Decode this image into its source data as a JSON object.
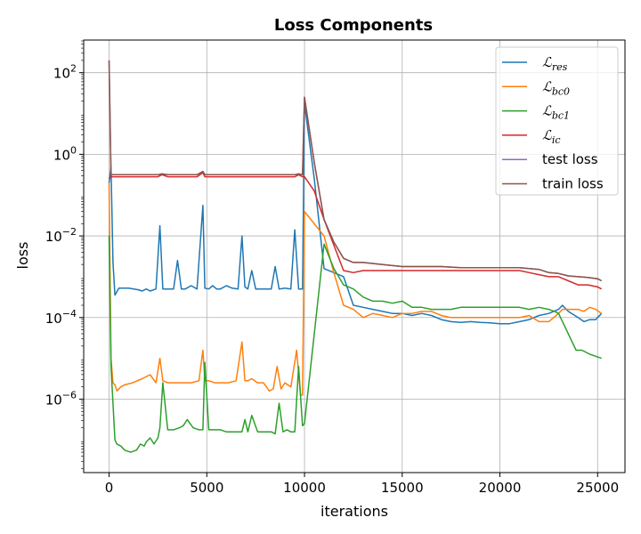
{
  "chart_data": {
    "type": "line",
    "title": "Loss Components",
    "xlabel": "iterations",
    "ylabel": "loss",
    "xlim": [
      -1300,
      26400
    ],
    "ylim_log10": [
      -7.8,
      2.8
    ],
    "yscale": "log",
    "grid": true,
    "legend_position": "top-right",
    "xticks": [
      {
        "value": 0,
        "label": "0"
      },
      {
        "value": 5000,
        "label": "5000"
      },
      {
        "value": 10000,
        "label": "10000"
      },
      {
        "value": 15000,
        "label": "15000"
      },
      {
        "value": 20000,
        "label": "20000"
      },
      {
        "value": 25000,
        "label": "25000"
      }
    ],
    "yticks": [
      {
        "exp": 2,
        "base": "10",
        "sup": "2"
      },
      {
        "exp": 0,
        "base": "10",
        "sup": "0"
      },
      {
        "exp": -2,
        "base": "10",
        "sup": "−2"
      },
      {
        "exp": -4,
        "base": "10",
        "sup": "−4"
      },
      {
        "exp": -6,
        "base": "10",
        "sup": "−6"
      }
    ],
    "series": [
      {
        "name": "res",
        "legend_sym": "ℒ",
        "legend_sub": "res",
        "color": "#1f77b4",
        "x": [
          0,
          100,
          200,
          300,
          500,
          1000,
          1500,
          1700,
          1900,
          2100,
          2400,
          2600,
          2750,
          3000,
          3300,
          3500,
          3700,
          3900,
          4200,
          4500,
          4800,
          4900,
          5100,
          5300,
          5500,
          5700,
          6000,
          6300,
          6600,
          6800,
          6950,
          7100,
          7300,
          7500,
          8000,
          8300,
          8500,
          8700,
          9000,
          9300,
          9500,
          9700,
          9900,
          10000,
          10500,
          11000,
          11500,
          12000,
          12500,
          13000,
          13500,
          14000,
          14500,
          15000,
          15500,
          16000,
          16500,
          17000,
          17500,
          18000,
          18500,
          19000,
          19500,
          20000,
          20500,
          21000,
          21500,
          22000,
          22500,
          23000,
          23200,
          23500,
          24000,
          24300,
          24600,
          24900,
          25200
        ],
        "y": [
          -0.7,
          -0.3,
          -2.65,
          -3.45,
          -3.28,
          -3.28,
          -3.32,
          -3.35,
          -3.3,
          -3.35,
          -3.3,
          -1.75,
          -3.3,
          -3.3,
          -3.3,
          -2.6,
          -3.3,
          -3.3,
          -3.22,
          -3.3,
          -1.25,
          -3.28,
          -3.3,
          -3.22,
          -3.3,
          -3.3,
          -3.22,
          -3.28,
          -3.3,
          -2.0,
          -3.25,
          -3.3,
          -2.85,
          -3.3,
          -3.3,
          -3.3,
          -2.75,
          -3.3,
          -3.28,
          -3.3,
          -1.85,
          -3.3,
          -3.3,
          1.25,
          -0.6,
          -2.8,
          -2.9,
          -3.0,
          -3.7,
          -3.75,
          -3.8,
          -3.85,
          -3.9,
          -3.9,
          -3.95,
          -3.9,
          -3.95,
          -4.05,
          -4.1,
          -4.12,
          -4.1,
          -4.12,
          -4.13,
          -4.15,
          -4.15,
          -4.1,
          -4.05,
          -3.95,
          -3.9,
          -3.8,
          -3.7,
          -3.85,
          -4.0,
          -4.1,
          -4.05,
          -4.05,
          -3.9
        ]
      },
      {
        "name": "bc0",
        "legend_sym": "ℒ",
        "legend_sub": "bc0",
        "color": "#ff7f0e",
        "x": [
          0,
          100,
          200,
          300,
          400,
          600,
          800,
          1200,
          1700,
          2100,
          2400,
          2600,
          2750,
          3000,
          3300,
          3600,
          3900,
          4200,
          4600,
          4800,
          4900,
          5100,
          5400,
          5700,
          6100,
          6500,
          6800,
          6950,
          7100,
          7300,
          7600,
          7900,
          8200,
          8400,
          8600,
          8800,
          9000,
          9300,
          9600,
          9800,
          9900,
          10000,
          11000,
          11500,
          12000,
          12500,
          13000,
          13500,
          14000,
          14500,
          15000,
          15500,
          16000,
          16500,
          17000,
          17500,
          18000,
          18500,
          19000,
          19500,
          20000,
          20500,
          21000,
          21500,
          22000,
          22500,
          23000,
          23200,
          23500,
          24000,
          24300,
          24600,
          24900,
          25200
        ],
        "y": [
          -0.7,
          -5.0,
          -5.6,
          -5.65,
          -5.8,
          -5.7,
          -5.65,
          -5.6,
          -5.5,
          -5.4,
          -5.6,
          -5.0,
          -5.55,
          -5.6,
          -5.6,
          -5.6,
          -5.6,
          -5.6,
          -5.55,
          -4.8,
          -5.55,
          -5.55,
          -5.6,
          -5.6,
          -5.6,
          -5.55,
          -4.6,
          -5.55,
          -5.55,
          -5.5,
          -5.6,
          -5.6,
          -5.8,
          -5.75,
          -5.2,
          -5.75,
          -5.6,
          -5.7,
          -4.8,
          -5.9,
          -5.9,
          -1.4,
          -2.0,
          -2.9,
          -3.7,
          -3.8,
          -4.0,
          -3.9,
          -3.95,
          -4.0,
          -3.9,
          -3.9,
          -3.85,
          -3.85,
          -3.95,
          -4.0,
          -4.0,
          -4.0,
          -4.0,
          -4.0,
          -4.0,
          -4.0,
          -4.0,
          -3.95,
          -4.1,
          -4.1,
          -3.9,
          -3.8,
          -3.8,
          -3.8,
          -3.85,
          -3.75,
          -3.8,
          -3.9
        ]
      },
      {
        "name": "bc1",
        "legend_sym": "ℒ",
        "legend_sub": "bc1",
        "color": "#2ca02c",
        "x": [
          0,
          100,
          200,
          300,
          400,
          600,
          800,
          1100,
          1400,
          1600,
          1800,
          1900,
          2100,
          2300,
          2500,
          2600,
          2750,
          3000,
          3300,
          3600,
          3800,
          4000,
          4300,
          4600,
          4800,
          4900,
          5100,
          5400,
          5700,
          6000,
          6400,
          6800,
          6950,
          7100,
          7300,
          7600,
          7900,
          8300,
          8500,
          8700,
          8900,
          9100,
          9300,
          9500,
          9700,
          9900,
          10000,
          11000,
          11500,
          12000,
          12500,
          13000,
          13500,
          14000,
          14500,
          15000,
          15500,
          16000,
          16500,
          17000,
          17500,
          18000,
          18500,
          19000,
          19500,
          20000,
          20500,
          21000,
          21500,
          22000,
          22500,
          22800,
          23000,
          23300,
          23600,
          23900,
          24200,
          24600,
          24900,
          25200
        ],
        "y": [
          -2.0,
          -5.2,
          -6.1,
          -7.0,
          -7.1,
          -7.15,
          -7.25,
          -7.3,
          -7.25,
          -7.1,
          -7.15,
          -7.05,
          -6.95,
          -7.1,
          -6.95,
          -6.7,
          -5.6,
          -6.75,
          -6.75,
          -6.7,
          -6.65,
          -6.5,
          -6.7,
          -6.75,
          -6.75,
          -5.1,
          -6.75,
          -6.75,
          -6.75,
          -6.8,
          -6.8,
          -6.8,
          -6.5,
          -6.8,
          -6.4,
          -6.8,
          -6.8,
          -6.8,
          -6.85,
          -6.1,
          -6.8,
          -6.75,
          -6.8,
          -6.8,
          -5.2,
          -6.65,
          -6.6,
          -2.2,
          -2.8,
          -3.2,
          -3.3,
          -3.5,
          -3.6,
          -3.6,
          -3.65,
          -3.6,
          -3.75,
          -3.75,
          -3.8,
          -3.8,
          -3.8,
          -3.75,
          -3.75,
          -3.75,
          -3.75,
          -3.75,
          -3.75,
          -3.75,
          -3.8,
          -3.75,
          -3.8,
          -3.85,
          -3.9,
          -4.2,
          -4.5,
          -4.8,
          -4.8,
          -4.9,
          -4.95,
          -5.0
        ]
      },
      {
        "name": "ic",
        "legend_sym": "ℒ",
        "legend_sub": "ic",
        "color": "#d62728",
        "x": [
          0,
          100,
          300,
          1000,
          2000,
          2500,
          2700,
          3000,
          4000,
          4500,
          4800,
          4900,
          5500,
          6500,
          7500,
          8500,
          9500,
          9700,
          9900,
          10000,
          10500,
          11000,
          12000,
          12500,
          13000,
          14000,
          15000,
          16000,
          17000,
          18000,
          19000,
          20000,
          21000,
          21500,
          22000,
          22500,
          23000,
          23500,
          24000,
          24500,
          25000,
          25200
        ],
        "y": [
          -0.6,
          -0.55,
          -0.55,
          -0.55,
          -0.55,
          -0.55,
          -0.5,
          -0.55,
          -0.55,
          -0.55,
          -0.45,
          -0.55,
          -0.55,
          -0.55,
          -0.55,
          -0.55,
          -0.55,
          -0.5,
          -0.55,
          -0.55,
          -0.9,
          -1.6,
          -2.85,
          -2.9,
          -2.85,
          -2.85,
          -2.85,
          -2.85,
          -2.85,
          -2.85,
          -2.85,
          -2.85,
          -2.85,
          -2.9,
          -2.95,
          -3.0,
          -3.0,
          -3.1,
          -3.2,
          -3.2,
          -3.25,
          -3.3
        ]
      },
      {
        "name": "test loss",
        "legend_sym": "",
        "legend_sub": "",
        "color": "#9467bd",
        "x": [
          0,
          100,
          300,
          1000,
          2000,
          2500,
          2700,
          3000,
          4000,
          4500,
          4800,
          4900,
          5500,
          6500,
          7500,
          8500,
          9500,
          9700,
          9900,
          10000,
          10500,
          11000,
          11500,
          12000,
          12500,
          13000,
          14000,
          15000,
          16000,
          17000,
          18000,
          19000,
          20000,
          21000,
          21500,
          22000,
          22500,
          23000,
          23500,
          24000,
          24500,
          25000,
          25200
        ],
        "y": [
          2.3,
          -0.5,
          -0.5,
          -0.5,
          -0.5,
          -0.5,
          -0.48,
          -0.5,
          -0.5,
          -0.5,
          -0.42,
          -0.5,
          -0.5,
          -0.5,
          -0.5,
          -0.5,
          -0.5,
          -0.48,
          -0.5,
          1.4,
          -0.2,
          -1.6,
          -2.15,
          -2.55,
          -2.65,
          -2.65,
          -2.7,
          -2.75,
          -2.75,
          -2.75,
          -2.78,
          -2.78,
          -2.78,
          -2.78,
          -2.8,
          -2.82,
          -2.9,
          -2.92,
          -2.98,
          -3.0,
          -3.02,
          -3.05,
          -3.1
        ]
      },
      {
        "name": "train loss",
        "legend_sym": "",
        "legend_sub": "",
        "color": "#8c564b",
        "x": [
          0,
          100,
          300,
          1000,
          2000,
          2500,
          2700,
          3000,
          4000,
          4500,
          4800,
          4900,
          5500,
          6500,
          7500,
          8500,
          9500,
          9700,
          9900,
          10000,
          10500,
          11000,
          11500,
          12000,
          12500,
          13000,
          14000,
          15000,
          16000,
          17000,
          18000,
          19000,
          20000,
          21000,
          21500,
          22000,
          22500,
          23000,
          23500,
          24000,
          24500,
          25000,
          25200
        ],
        "y": [
          2.3,
          -0.5,
          -0.5,
          -0.5,
          -0.5,
          -0.5,
          -0.48,
          -0.5,
          -0.5,
          -0.5,
          -0.42,
          -0.5,
          -0.5,
          -0.5,
          -0.5,
          -0.5,
          -0.5,
          -0.48,
          -0.5,
          1.4,
          -0.2,
          -1.6,
          -2.15,
          -2.55,
          -2.65,
          -2.65,
          -2.7,
          -2.75,
          -2.75,
          -2.75,
          -2.78,
          -2.78,
          -2.78,
          -2.78,
          -2.8,
          -2.82,
          -2.9,
          -2.92,
          -2.98,
          -3.0,
          -3.02,
          -3.05,
          -3.1
        ]
      }
    ]
  }
}
